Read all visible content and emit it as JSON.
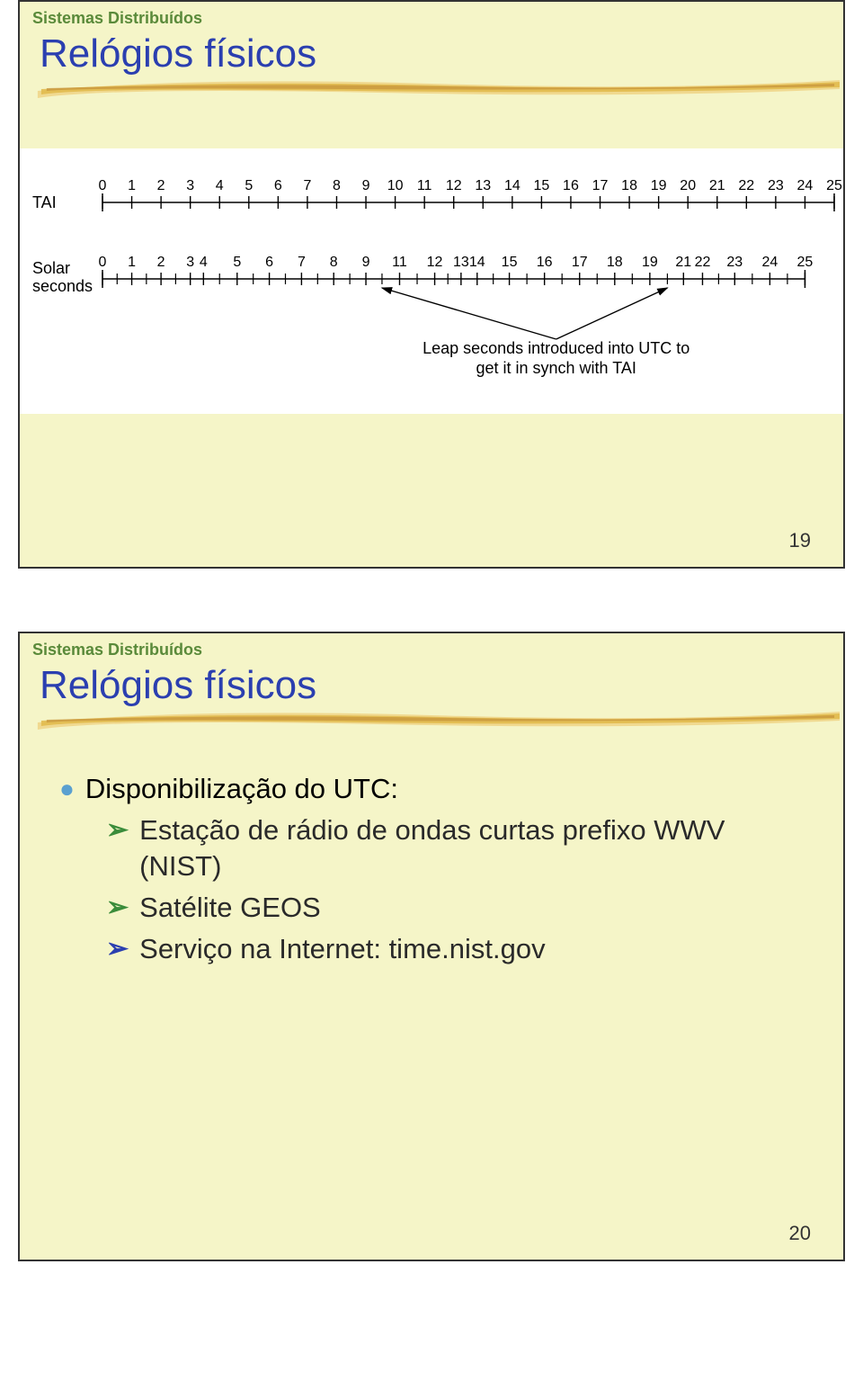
{
  "slide1": {
    "header": "Sistemas Distribuídos",
    "header_color": "#5a8a3a",
    "title": "Relógios físicos",
    "title_color": "#2b3fb0",
    "bg_color": "#f5f5c8",
    "page_number": "19",
    "brush_colors": {
      "light": "#f0d68a",
      "mid": "#e0b84a",
      "dark": "#c4923a"
    },
    "chart": {
      "bg": "#ffffff",
      "text_color": "#000000",
      "tai_label": "TAI",
      "solar_label_1": "Solar",
      "solar_label_2": "seconds",
      "tai_ticks": [
        "0",
        "1",
        "2",
        "3",
        "4",
        "5",
        "6",
        "7",
        "8",
        "9",
        "10",
        "11",
        "12",
        "13",
        "14",
        "15",
        "16",
        "17",
        "18",
        "19",
        "20",
        "21",
        "22",
        "23",
        "24",
        "25"
      ],
      "solar_ticks": [
        {
          "label": "0",
          "pos": 0
        },
        {
          "label": "1",
          "pos": 1
        },
        {
          "label": "2",
          "pos": 2
        },
        {
          "label": "3",
          "pos": 3
        },
        {
          "label": "4",
          "pos": 3.45
        },
        {
          "label": "5",
          "pos": 4.6
        },
        {
          "label": "6",
          "pos": 5.7
        },
        {
          "label": "7",
          "pos": 6.8
        },
        {
          "label": "8",
          "pos": 7.9
        },
        {
          "label": "9",
          "pos": 9
        },
        {
          "label": "11",
          "pos": 10.15
        },
        {
          "label": "12",
          "pos": 11.35
        },
        {
          "label": "13",
          "pos": 12.25
        },
        {
          "label": "14",
          "pos": 12.8
        },
        {
          "label": "15",
          "pos": 13.9
        },
        {
          "label": "16",
          "pos": 15.1
        },
        {
          "label": "17",
          "pos": 16.3
        },
        {
          "label": "18",
          "pos": 17.5
        },
        {
          "label": "19",
          "pos": 18.7
        },
        {
          "label": "21",
          "pos": 19.85
        },
        {
          "label": "22",
          "pos": 20.5
        },
        {
          "label": "23",
          "pos": 21.6
        },
        {
          "label": "24",
          "pos": 22.8
        },
        {
          "label": "25",
          "pos": 24
        }
      ],
      "solar_minor_ticks": [
        0.5,
        1.5,
        2.5,
        4.0,
        5.15,
        6.25,
        7.35,
        8.45,
        9.55,
        10.75,
        11.8,
        13.35,
        14.5,
        15.7,
        16.9,
        18.1,
        19.3,
        21.05,
        22.2,
        23.4
      ],
      "caption_line1": "Leap seconds introduced into UTC to",
      "caption_line2": "get it in synch with TAI",
      "arrow_targets": [
        9.55,
        19.3
      ],
      "arrow_origin_x": 15.5,
      "fontsize_ticks": 16,
      "fontsize_labels": 18,
      "fontsize_caption": 18
    }
  },
  "slide2": {
    "header": "Sistemas Distribuídos",
    "header_color": "#5a8a3a",
    "title": "Relógios físicos",
    "title_color": "#2b3fb0",
    "bg_color": "#f5f5c8",
    "page_number": "20",
    "brush_colors": {
      "light": "#f0d68a",
      "mid": "#e0b84a",
      "dark": "#c4923a"
    },
    "bullet_disc_color": "#5aa0d0",
    "bullet_text_color": "#2a2a2a",
    "bullets": {
      "main": "Disponibilização do UTC:",
      "subs": [
        {
          "chev_color": "#3a8c3a",
          "text": "Estação de rádio de ondas curtas prefixo WWV (NIST)"
        },
        {
          "chev_color": "#3a8c3a",
          "text": "Satélite GEOS"
        },
        {
          "chev_color": "#2b3fb0",
          "text": "Serviço na Internet: time.nist.gov"
        }
      ]
    }
  }
}
